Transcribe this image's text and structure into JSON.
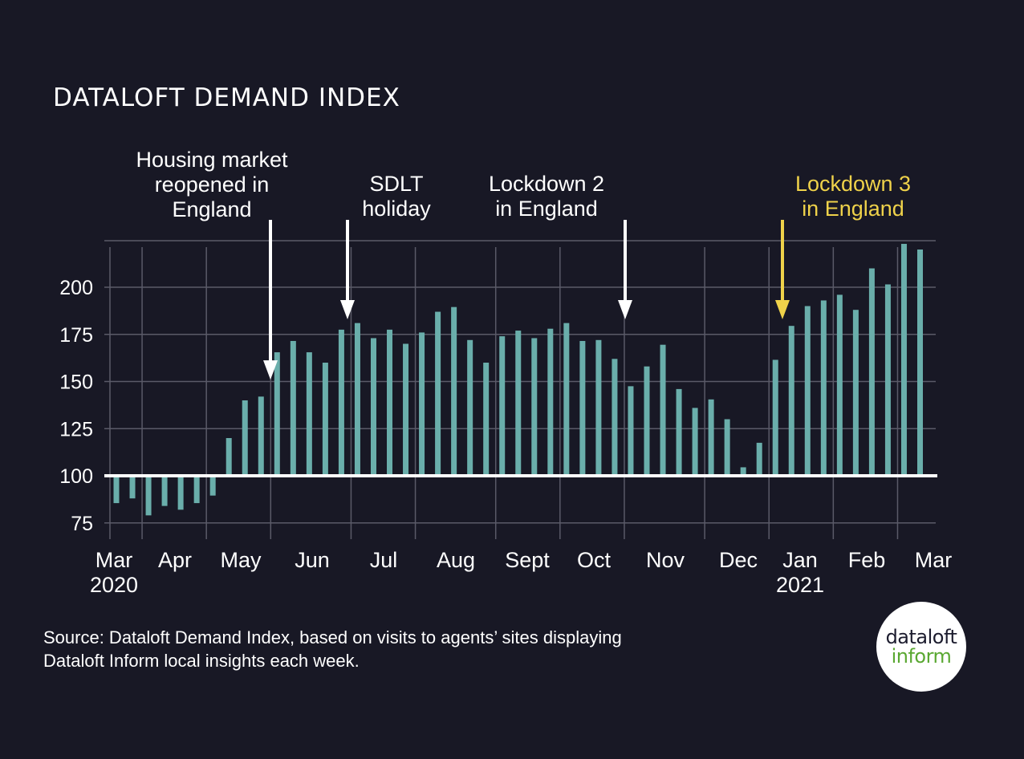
{
  "chart_data": {
    "type": "bar",
    "title": "DATALOFT DEMAND INDEX",
    "xlabel": "",
    "ylabel": "",
    "baseline": 100,
    "ylim": [
      70,
      225
    ],
    "yticks": [
      75,
      100,
      125,
      150,
      175,
      200
    ],
    "grid": true,
    "x_month_ticks": [
      {
        "label": "Mar",
        "sublabel": "2020",
        "week_index": 0
      },
      {
        "label": "Apr",
        "sublabel": "",
        "week_index": 2
      },
      {
        "label": "May",
        "sublabel": "",
        "week_index": 6
      },
      {
        "label": "Jun",
        "sublabel": "",
        "week_index": 10
      },
      {
        "label": "Jul",
        "sublabel": "",
        "week_index": 15
      },
      {
        "label": "Aug",
        "sublabel": "",
        "week_index": 19
      },
      {
        "label": "Sept",
        "sublabel": "",
        "week_index": 24
      },
      {
        "label": "Oct",
        "sublabel": "",
        "week_index": 28
      },
      {
        "label": "Nov",
        "sublabel": "",
        "week_index": 32
      },
      {
        "label": "Dec",
        "sublabel": "",
        "week_index": 37
      },
      {
        "label": "Jan",
        "sublabel": "2021",
        "week_index": 41
      },
      {
        "label": "Feb",
        "sublabel": "",
        "week_index": 45
      },
      {
        "label": "Mar",
        "sublabel": "",
        "week_index": 49
      }
    ],
    "series": [
      {
        "name": "Dataloft Demand Index (weekly)",
        "color": "#6aaeab",
        "values": [
          85.5,
          88,
          79,
          84,
          82,
          85.5,
          89.5,
          120,
          140,
          142,
          165.5,
          171.5,
          165.5,
          160,
          177.5,
          181,
          173,
          177.5,
          170,
          176,
          187,
          189.5,
          172,
          160,
          174,
          177,
          173,
          178,
          181,
          171.5,
          172,
          162,
          147.5,
          158,
          169.5,
          146,
          136,
          140.5,
          130,
          104.5,
          117.5,
          161.5,
          179.5,
          190,
          193,
          196,
          188,
          210,
          201.5,
          223,
          220
        ]
      }
    ],
    "annotations": [
      {
        "lines": [
          "Housing market",
          "reopened in",
          "England"
        ],
        "week_index": 9.5,
        "arrow_value": 151,
        "color": "#ffffff"
      },
      {
        "lines": [
          "SDLT",
          "holiday"
        ],
        "week_index": 14.5,
        "arrow_value": 183,
        "color": "#ffffff"
      },
      {
        "lines": [
          "Lockdown 2",
          "in England"
        ],
        "week_index": 31.5,
        "arrow_value": 183,
        "color": "#ffffff"
      },
      {
        "lines": [
          "Lockdown 3",
          "in England"
        ],
        "week_index": 41.5,
        "arrow_value": 183,
        "color": "#efd24a"
      }
    ]
  },
  "footer": {
    "source_line1": "Source: Dataloft Demand Index, based on visits to agents’ sites displaying",
    "source_line2": "Dataloft Inform local insights each week."
  },
  "logo": {
    "line1": "dataloft",
    "line2": "inform"
  },
  "colors": {
    "background": "#181825",
    "bar": "#6aaeab",
    "baseline": "#ffffff",
    "grid": "#5a5a68",
    "highlight": "#efd24a"
  }
}
